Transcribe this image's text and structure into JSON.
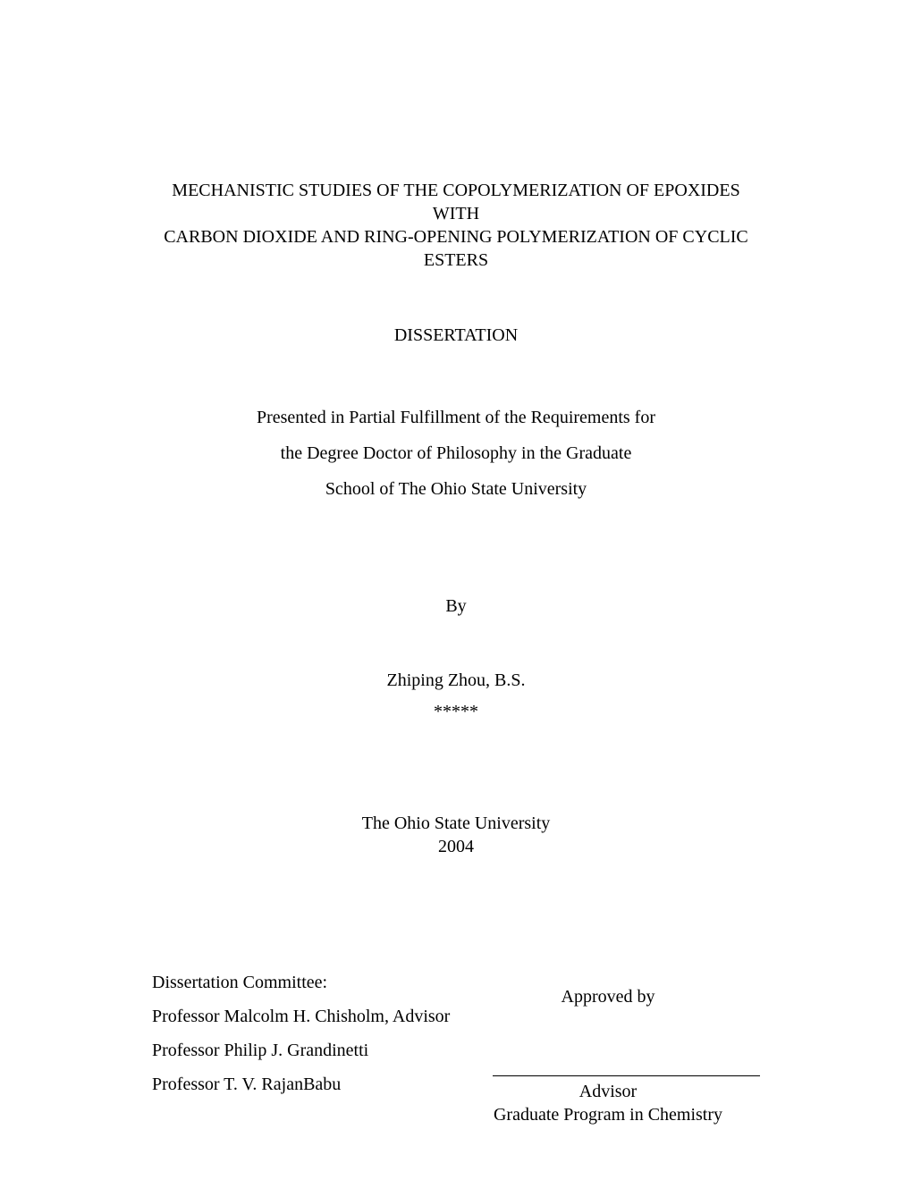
{
  "title": {
    "line1": "MECHANISTIC STUDIES OF THE COPOLYMERIZATION OF EPOXIDES WITH",
    "line2": "CARBON DIOXIDE AND RING-OPENING POLYMERIZATION OF CYCLIC",
    "line3": "ESTERS"
  },
  "doc_type": "DISSERTATION",
  "fulfillment": {
    "line1": "Presented in Partial Fulfillment of the Requirements for",
    "line2": "the Degree Doctor of Philosophy in the Graduate",
    "line3": "School of The Ohio State University"
  },
  "by_label": "By",
  "author": "Zhiping Zhou, B.S.",
  "stars": "*****",
  "university": {
    "name": "The Ohio State University",
    "year": "2004"
  },
  "committee": {
    "heading": "Dissertation Committee:",
    "members": [
      "Professor Malcolm H. Chisholm, Advisor",
      "Professor Philip J. Grandinetti",
      "Professor T. V. RajanBabu"
    ]
  },
  "approval": {
    "approved_by": "Approved by",
    "role": "Advisor",
    "program": "Graduate Program in Chemistry"
  },
  "colors": {
    "background": "#ffffff",
    "text": "#000000",
    "line": "#000000"
  },
  "typography": {
    "font_family": "Times New Roman",
    "body_fontsize": 20
  }
}
